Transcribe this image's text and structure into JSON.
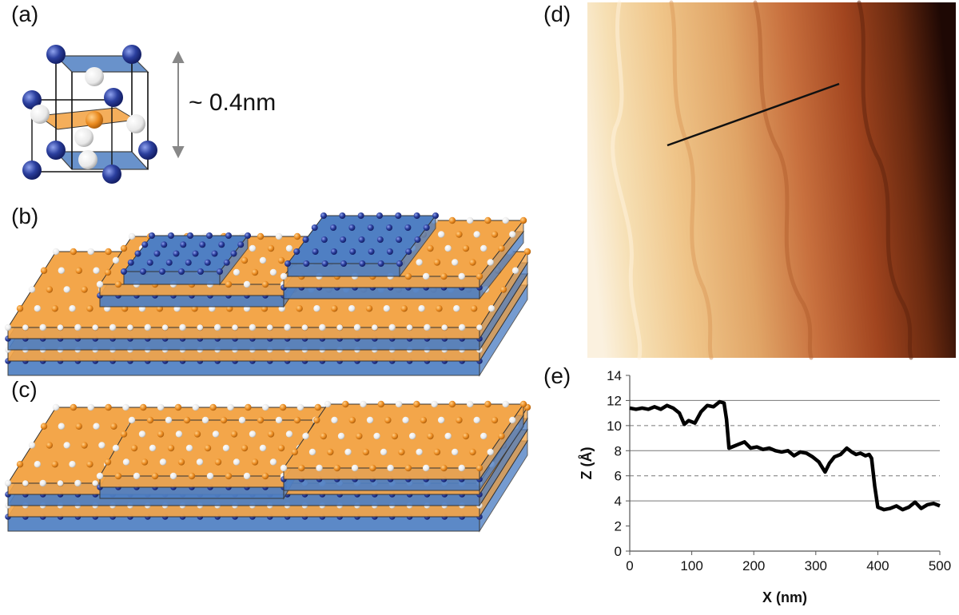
{
  "figure": {
    "panel_labels": {
      "a": "(a)",
      "b": "(b)",
      "c": "(c)",
      "d": "(d)",
      "e": "(e)"
    },
    "unit_cell_height_label": "~ 0.4nm",
    "colors": {
      "blue_atom": "#2b3f9e",
      "white_atom": "#f4f4f4",
      "orange_atom": "#e9891e",
      "orange_layer": "#f3a64a",
      "blue_layer": "#4f7fc3",
      "afm_light": "#f8e4c2",
      "afm_dark": "#1e0804"
    }
  },
  "chart_data": {
    "type": "line",
    "xlabel": "X (nm)",
    "ylabel": "Z (Å)",
    "xlim": [
      0,
      500
    ],
    "ylim": [
      0,
      14
    ],
    "xticks": [
      0,
      100,
      200,
      300,
      400,
      500
    ],
    "yticks": [
      0,
      2,
      4,
      6,
      8,
      10,
      12,
      14
    ],
    "solid_gridlines_y": [
      4,
      8,
      12
    ],
    "dashed_gridlines_y": [
      6,
      10
    ],
    "x": [
      0,
      10,
      20,
      30,
      40,
      50,
      60,
      70,
      80,
      88,
      95,
      105,
      115,
      125,
      135,
      145,
      152,
      156,
      160,
      165,
      175,
      185,
      195,
      205,
      215,
      225,
      235,
      245,
      255,
      265,
      275,
      285,
      295,
      305,
      315,
      322,
      330,
      340,
      350,
      358,
      365,
      372,
      380,
      386,
      390,
      395,
      400,
      410,
      420,
      430,
      440,
      450,
      460,
      470,
      480,
      490,
      500
    ],
    "y": [
      11.4,
      11.3,
      11.4,
      11.3,
      11.5,
      11.3,
      11.6,
      11.4,
      11.0,
      10.1,
      10.4,
      10.2,
      11.1,
      11.6,
      11.5,
      11.9,
      11.8,
      10.5,
      8.2,
      8.3,
      8.5,
      8.7,
      8.2,
      8.3,
      8.1,
      8.2,
      8.0,
      7.9,
      8.0,
      7.6,
      7.9,
      7.8,
      7.5,
      7.1,
      6.3,
      7.0,
      7.5,
      7.7,
      8.2,
      7.9,
      7.7,
      7.8,
      7.6,
      7.7,
      7.4,
      5.2,
      3.5,
      3.3,
      3.4,
      3.6,
      3.3,
      3.5,
      3.9,
      3.4,
      3.7,
      3.8,
      3.6
    ]
  }
}
